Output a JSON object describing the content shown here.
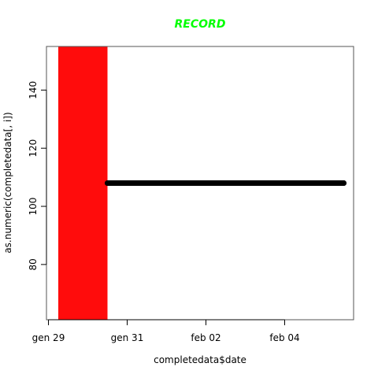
{
  "chart_data": {
    "type": "line",
    "title": "RECORD",
    "xlabel": "completedata$date",
    "ylabel": "as.numeric(completedata[, i])",
    "x_type": "date",
    "x_ticks": [
      "gen 29",
      "gen 31",
      "feb 02",
      "feb 04"
    ],
    "x_tick_dates": [
      "2015-01-29",
      "2015-01-31",
      "2015-02-02",
      "2015-02-04"
    ],
    "xlim": [
      "2015-01-28T22:48",
      "2015-02-05T18:00"
    ],
    "y_ticks": [
      80,
      100,
      120,
      140
    ],
    "ylim": [
      61,
      155
    ],
    "grid": false,
    "legend": "none",
    "highlight_region": {
      "x_start": "2015-01-29T06:00",
      "x_end": "2015-01-30T12:00",
      "color": "#ff0c0c"
    },
    "series": [
      {
        "color": "#000000",
        "points": [
          {
            "x": "2015-01-30T12:00",
            "y": 108
          },
          {
            "x": "2015-02-05T12:00",
            "y": 108
          }
        ]
      }
    ]
  },
  "colors": {
    "title": "#00ff00",
    "highlight": "#ff0c0c",
    "line": "#000000"
  }
}
